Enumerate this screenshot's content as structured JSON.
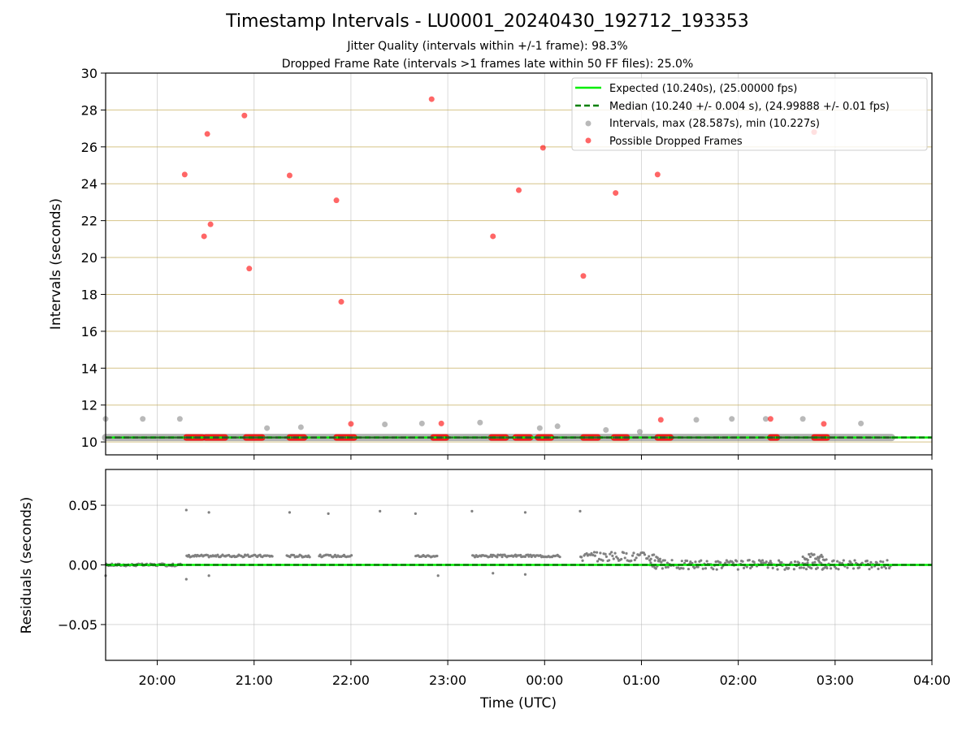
{
  "chart_data": [
    {
      "type": "scatter",
      "title": "Timestamp Intervals - LU0001_20240430_192712_193353",
      "subtitle_1": "Jitter Quality (intervals within +/-1 frame): 98.3%",
      "subtitle_2": "Dropped Frame Rate (intervals >1 frames late within 50 FF files): 25.0%",
      "xlabel": "",
      "ylabel": "Intervals (seconds)",
      "xlim": [
        "19:28",
        "04:00"
      ],
      "ylim": [
        9.3,
        30
      ],
      "yticks": [
        "10",
        "12",
        "14",
        "16",
        "18",
        "20",
        "22",
        "24",
        "26",
        "28",
        "30"
      ],
      "colors": {
        "expected": "#00ee00",
        "median": "#008000",
        "intervals": "#808080",
        "dropped": "#ff0000",
        "hgrid": "#c8b060"
      },
      "expected_value": 10.24,
      "median_value": 10.24,
      "legend": {
        "placement": "top-right",
        "expected": "Expected (10.240s), (25.00000 fps)",
        "median": "Median (10.240 +/- 0.004 s), (24.99888 +/- 0.01 fps)",
        "intervals": "Intervals, max (28.587s), min (10.227s)",
        "dropped": "Possible Dropped Frames"
      },
      "baseline_intervals": {
        "x_start": "19:28",
        "x_end": "03:35",
        "y": 10.24
      },
      "intervals_outliers": [
        {
          "x": "19:28",
          "y": 11.25
        },
        {
          "x": "19:51",
          "y": 11.25
        },
        {
          "x": "20:14",
          "y": 11.25
        },
        {
          "x": "21:08",
          "y": 10.75
        },
        {
          "x": "21:29",
          "y": 10.8
        },
        {
          "x": "22:21",
          "y": 10.95
        },
        {
          "x": "22:44",
          "y": 11.0
        },
        {
          "x": "23:20",
          "y": 11.05
        },
        {
          "x": "23:57",
          "y": 10.75
        },
        {
          "x": "00:08",
          "y": 10.85
        },
        {
          "x": "00:38",
          "y": 10.65
        },
        {
          "x": "00:59",
          "y": 10.55
        },
        {
          "x": "01:34",
          "y": 11.2
        },
        {
          "x": "01:56",
          "y": 11.25
        },
        {
          "x": "02:17",
          "y": 11.25
        },
        {
          "x": "02:40",
          "y": 11.25
        },
        {
          "x": "03:16",
          "y": 11.0
        }
      ],
      "dropped_frames": [
        {
          "x": "20:17",
          "y": 24.5
        },
        {
          "x": "20:29",
          "y": 21.15
        },
        {
          "x": "20:31",
          "y": 26.7
        },
        {
          "x": "20:33",
          "y": 21.8
        },
        {
          "x": "20:54",
          "y": 27.7
        },
        {
          "x": "20:57",
          "y": 19.4
        },
        {
          "x": "21:22",
          "y": 24.45
        },
        {
          "x": "21:51",
          "y": 23.1
        },
        {
          "x": "21:54",
          "y": 17.6
        },
        {
          "x": "22:00",
          "y": 10.98
        },
        {
          "x": "22:50",
          "y": 28.587
        },
        {
          "x": "22:56",
          "y": 11.0
        },
        {
          "x": "23:28",
          "y": 21.15
        },
        {
          "x": "23:44",
          "y": 23.65
        },
        {
          "x": "23:59",
          "y": 25.95
        },
        {
          "x": "00:24",
          "y": 19.0
        },
        {
          "x": "00:44",
          "y": 23.5
        },
        {
          "x": "01:10",
          "y": 24.5
        },
        {
          "x": "01:12",
          "y": 11.2
        },
        {
          "x": "02:20",
          "y": 11.25
        },
        {
          "x": "02:47",
          "y": 26.8
        },
        {
          "x": "02:53",
          "y": 10.98
        }
      ],
      "dropped_clusters_at_expected": [
        {
          "start": "20:18",
          "end": "20:28"
        },
        {
          "start": "20:30",
          "end": "20:42"
        },
        {
          "start": "20:55",
          "end": "21:05"
        },
        {
          "start": "21:22",
          "end": "21:31"
        },
        {
          "start": "21:51",
          "end": "22:02"
        },
        {
          "start": "22:51",
          "end": "22:59"
        },
        {
          "start": "23:27",
          "end": "23:36"
        },
        {
          "start": "23:42",
          "end": "23:51"
        },
        {
          "start": "23:56",
          "end": "00:04"
        },
        {
          "start": "00:24",
          "end": "00:33"
        },
        {
          "start": "00:43",
          "end": "00:51"
        },
        {
          "start": "01:10",
          "end": "01:18"
        },
        {
          "start": "02:20",
          "end": "02:24"
        },
        {
          "start": "02:47",
          "end": "02:55"
        }
      ]
    },
    {
      "type": "scatter",
      "xlabel": "Time (UTC)",
      "ylabel": "Residuals (seconds)",
      "xlim": [
        "19:28",
        "04:00"
      ],
      "ylim": [
        -0.08,
        0.08
      ],
      "xticks": [
        "20:00",
        "21:00",
        "22:00",
        "23:00",
        "00:00",
        "01:00",
        "02:00",
        "03:00",
        "04:00"
      ],
      "yticks": [
        "0.05",
        "0.00",
        "−0.05"
      ],
      "colors": {
        "points": "#808080",
        "expected": "#00ee00",
        "median": "#008000"
      },
      "reference_line": 0.0,
      "outliers": [
        {
          "x": "19:28",
          "y": -0.009
        },
        {
          "x": "20:18",
          "y": 0.046
        },
        {
          "x": "20:32",
          "y": 0.044
        },
        {
          "x": "21:22",
          "y": 0.044
        },
        {
          "x": "21:46",
          "y": 0.043
        },
        {
          "x": "22:18",
          "y": 0.045
        },
        {
          "x": "22:40",
          "y": 0.043
        },
        {
          "x": "23:15",
          "y": 0.045
        },
        {
          "x": "23:48",
          "y": 0.044
        },
        {
          "x": "00:22",
          "y": 0.045
        },
        {
          "x": "20:18",
          "y": -0.012
        },
        {
          "x": "20:32",
          "y": -0.009
        },
        {
          "x": "22:54",
          "y": -0.009
        },
        {
          "x": "23:28",
          "y": -0.007
        },
        {
          "x": "23:48",
          "y": -0.008
        }
      ],
      "bands": [
        {
          "start": "19:28",
          "end": "20:15",
          "y": 0.0,
          "spread": 0.001
        },
        {
          "start": "20:18",
          "end": "21:12",
          "y": 0.0075,
          "spread": 0.001
        },
        {
          "start": "21:20",
          "end": "21:35",
          "y": 0.0075,
          "spread": 0.001
        },
        {
          "start": "21:40",
          "end": "22:01",
          "y": 0.0075,
          "spread": 0.001
        },
        {
          "start": "22:40",
          "end": "22:54",
          "y": 0.0075,
          "spread": 0.001
        },
        {
          "start": "23:15",
          "end": "00:10",
          "y": 0.0075,
          "spread": 0.001
        },
        {
          "start": "00:22",
          "end": "01:12",
          "y": 0.007,
          "spread": 0.004
        },
        {
          "start": "01:05",
          "end": "02:55",
          "y": 0.0,
          "spread": 0.004
        },
        {
          "start": "02:40",
          "end": "02:55",
          "y": 0.007,
          "spread": 0.003
        },
        {
          "start": "02:55",
          "end": "03:35",
          "y": 0.0,
          "spread": 0.004
        }
      ]
    }
  ]
}
